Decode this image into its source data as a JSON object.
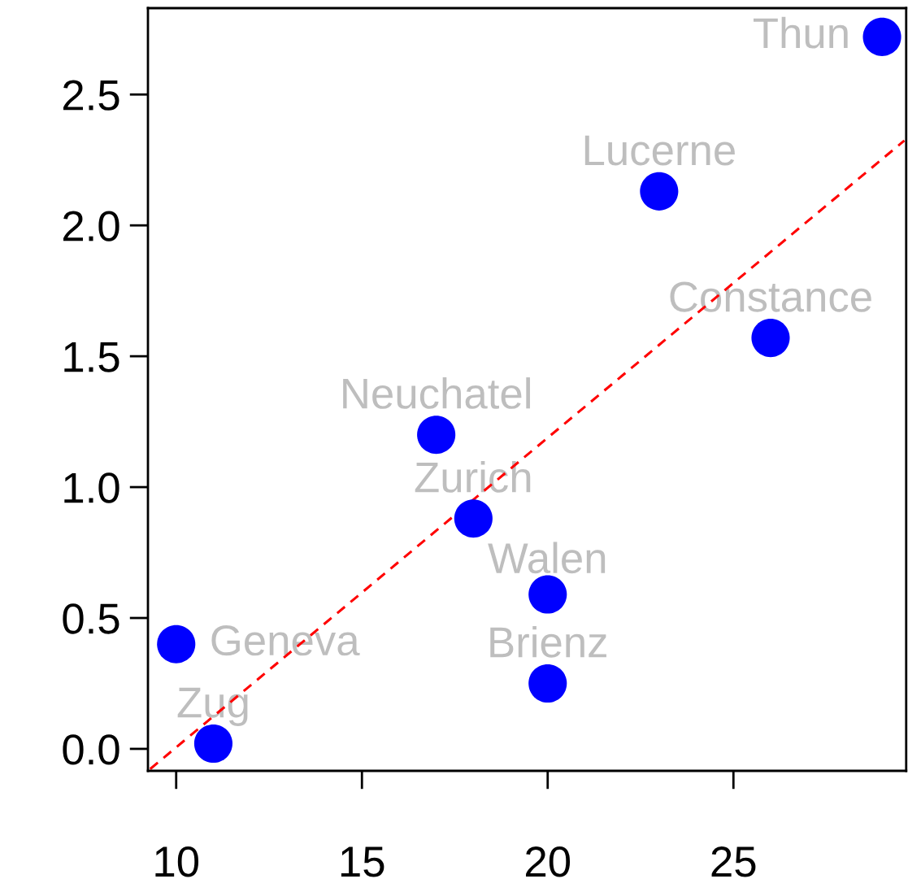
{
  "chart_data": {
    "type": "scatter",
    "series": [
      {
        "type": "scatter",
        "name": "Thun",
        "color": "#0000ff",
        "marker": "circle",
        "x": [
          29
        ],
        "values": [
          2.72
        ]
      },
      {
        "type": "scatter",
        "name": "Lucerne",
        "color": "#0000ff",
        "marker": "circle",
        "x": [
          23
        ],
        "values": [
          2.13
        ]
      },
      {
        "type": "scatter",
        "name": "Constance",
        "color": "#0000ff",
        "marker": "circle",
        "x": [
          26
        ],
        "values": [
          1.57
        ]
      },
      {
        "type": "scatter",
        "name": "Neuchatel",
        "color": "#0000ff",
        "marker": "circle",
        "x": [
          17
        ],
        "values": [
          1.2
        ]
      },
      {
        "type": "scatter",
        "name": "Zurich",
        "color": "#0000ff",
        "marker": "circle",
        "x": [
          18
        ],
        "values": [
          0.88
        ]
      },
      {
        "type": "scatter",
        "name": "Walen",
        "color": "#0000ff",
        "marker": "circle",
        "x": [
          20
        ],
        "values": [
          0.59
        ]
      },
      {
        "type": "scatter",
        "name": "Brienz",
        "color": "#0000ff",
        "marker": "circle",
        "x": [
          20
        ],
        "values": [
          0.25
        ]
      },
      {
        "type": "scatter",
        "name": "Geneva",
        "color": "#0000ff",
        "marker": "circle",
        "x": [
          10
        ],
        "values": [
          0.4
        ]
      },
      {
        "type": "scatter",
        "name": "Zug",
        "color": "#0000ff",
        "marker": "circle",
        "x": [
          11
        ],
        "values": [
          0.02
        ]
      },
      {
        "type": "line",
        "color": "#ff0000",
        "line_style": "dashed",
        "x": [
          9.3,
          29.6
        ],
        "values": [
          -0.077,
          2.324
        ]
      }
    ],
    "xlim": [
      9.24,
      29.65
    ],
    "ylim": [
      -0.084,
      2.83
    ],
    "xticks": [
      10,
      15,
      20,
      25
    ],
    "yticks": [
      {
        "value": 0,
        "label": "0.0"
      },
      {
        "value": 0.5,
        "label": "0.5"
      },
      {
        "value": 1,
        "label": "1.0"
      },
      {
        "value": 1.5,
        "label": "1.5"
      },
      {
        "value": 2,
        "label": "2.0"
      },
      {
        "value": 2.5,
        "label": "2.5"
      }
    ],
    "grid": false
  }
}
